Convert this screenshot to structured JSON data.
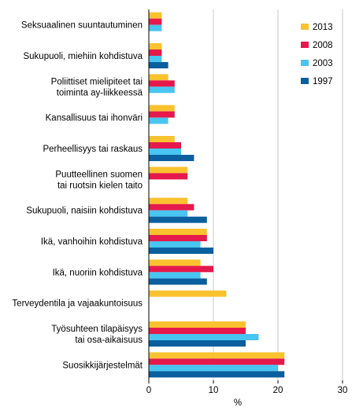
{
  "chart_data": {
    "type": "bar",
    "orientation": "horizontal",
    "categories": [
      [
        "Seksuaalinen suuntautuminen"
      ],
      [
        "Sukupuoli, miehiin kohdistuva"
      ],
      [
        "Poliittiset mielipiteet tai",
        "toiminta ay-liikkeessä"
      ],
      [
        "Kansallisuus tai ihonväri"
      ],
      [
        "Perheellisyys tai raskaus"
      ],
      [
        "Puutteellinen suomen",
        "tai ruotsin kielen taito"
      ],
      [
        "Sukupuoli, naisiin kohdistuva"
      ],
      [
        "Ikä, vanhoihin kohdistuva"
      ],
      [
        "Ikä, nuoriin kohdistuva"
      ],
      [
        "Terveydentila ja vajaakuntoisuus"
      ],
      [
        "Työsuhteen tilapäisyys",
        "tai osa-aikaisuus"
      ],
      [
        "Suosikkijärjestelmät"
      ]
    ],
    "series": [
      {
        "name": "2013",
        "color": "#f9c22e",
        "values": [
          2,
          2,
          3,
          4,
          4,
          6,
          6,
          9,
          8,
          12,
          15,
          21
        ]
      },
      {
        "name": "2008",
        "color": "#e5194b",
        "values": [
          2,
          2,
          4,
          4,
          5,
          6,
          7,
          9,
          10,
          null,
          15,
          21
        ]
      },
      {
        "name": "2003",
        "color": "#48c5f0",
        "values": [
          2,
          2,
          4,
          3,
          5,
          null,
          6,
          8,
          8,
          null,
          17,
          20
        ]
      },
      {
        "name": "1997",
        "color": "#0a5f9e",
        "values": [
          null,
          3,
          null,
          null,
          7,
          null,
          9,
          10,
          9,
          null,
          15,
          21
        ]
      }
    ],
    "xlabel": "%",
    "xlim": [
      0,
      30
    ],
    "xticks": [
      0,
      10,
      20,
      30
    ],
    "grid": true,
    "legend_position": "top-right"
  }
}
